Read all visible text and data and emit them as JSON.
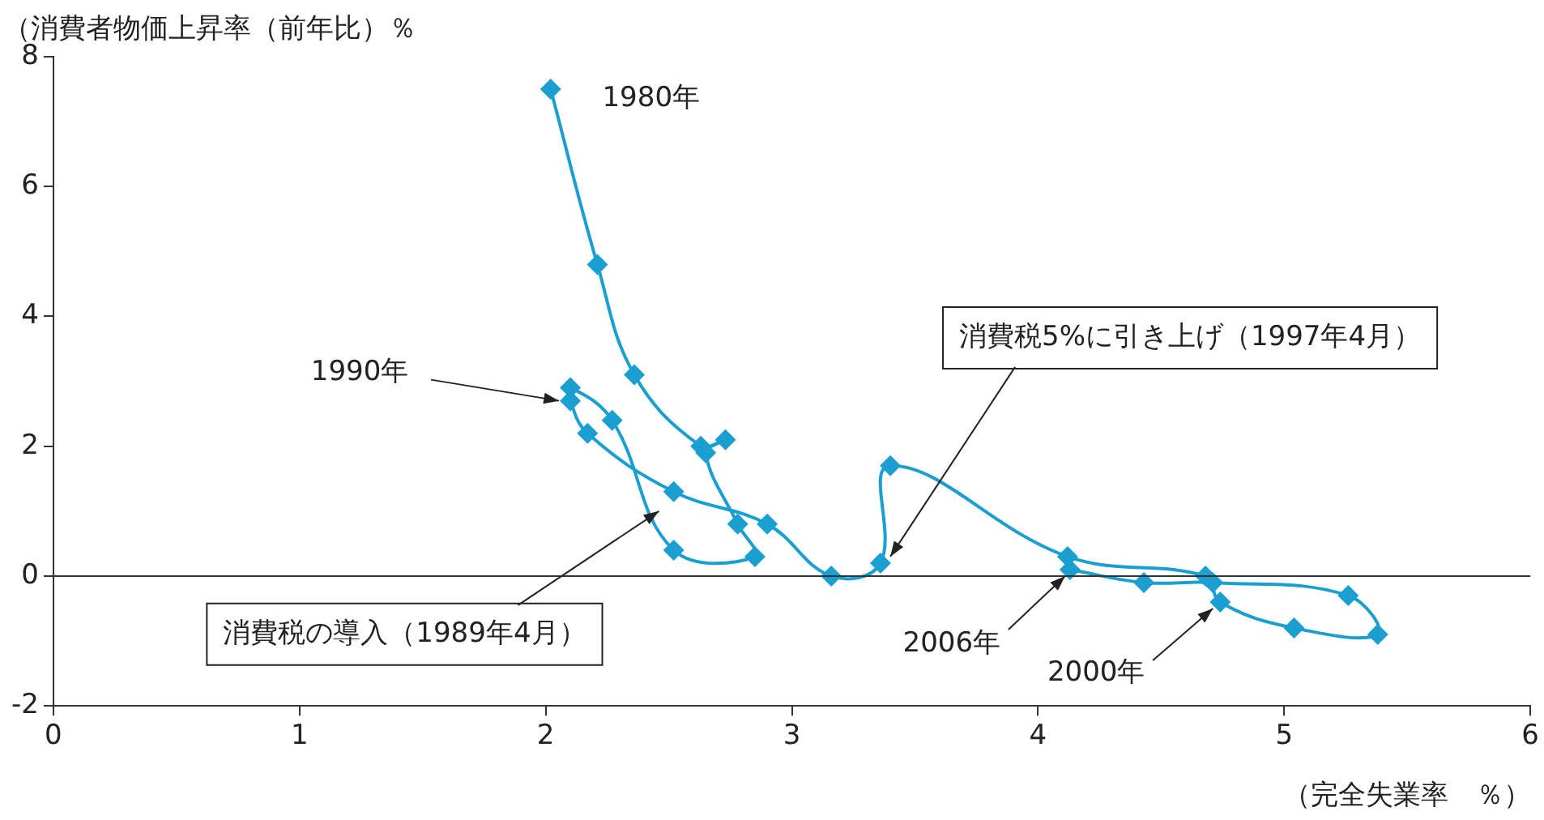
{
  "chart_data": {
    "type": "line",
    "ylabel": "（消費者物価上昇率（前年比）％",
    "xlabel": "（完全失業率　％）",
    "x": [
      2.02,
      2.21,
      2.36,
      2.63,
      2.73,
      2.65,
      2.78,
      2.85,
      2.52,
      2.27,
      2.1,
      2.1,
      2.17,
      2.52,
      2.9,
      3.16,
      3.36,
      3.4,
      4.12,
      4.68,
      4.74,
      5.04,
      5.38,
      5.26,
      4.71,
      4.43,
      4.13
    ],
    "series": [
      {
        "color": "#1a9fd0",
        "values": [
          7.5,
          4.8,
          3.1,
          2.0,
          2.1,
          1.9,
          0.8,
          0.3,
          0.4,
          2.4,
          2.9,
          2.7,
          2.2,
          1.3,
          0.8,
          0.0,
          0.2,
          1.7,
          0.3,
          0.0,
          -0.4,
          -0.8,
          -0.9,
          -0.3,
          -0.1,
          -0.1,
          0.1
        ]
      }
    ],
    "xlim": [
      0,
      6
    ],
    "xticks": [
      0,
      1,
      2,
      3,
      4,
      5,
      6
    ],
    "ylim": [
      -2,
      8
    ],
    "yticks": [
      -2,
      0,
      2,
      4,
      6,
      8
    ],
    "grid": false,
    "legend": false,
    "marker": "diamond",
    "line_style": "solid",
    "ref_lines": [
      {
        "axis": "y",
        "value": 0,
        "color": "#333333"
      }
    ],
    "annotations": [
      {
        "text": "1980年",
        "x": 2.02,
        "y": 7.5
      },
      {
        "text": "1990年",
        "x": 2.1,
        "y": 2.7
      },
      {
        "text": "消費税5%に引き上げ（1997年4月）",
        "x": 3.4,
        "y": 0.3
      },
      {
        "text": "消費税の導入（1989年4月）",
        "x": 2.46,
        "y": 1.0
      },
      {
        "text": "2006年",
        "x": 4.11,
        "y": 0.0
      },
      {
        "text": "2000年",
        "x": 4.71,
        "y": -0.5
      }
    ]
  }
}
